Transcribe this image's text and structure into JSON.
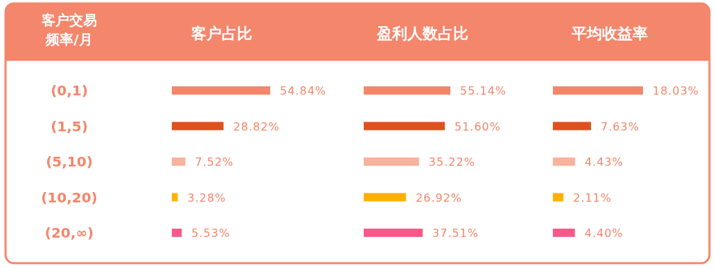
{
  "chart_data": [
    {
      "type": "bar",
      "orientation": "horizontal",
      "title": "客户占比",
      "ylabel": "客户交易频率/月",
      "categories": [
        "(0,1)",
        "(1,5)",
        "(5,10)",
        "(10,20)",
        "(20,∞)"
      ],
      "values": [
        54.84,
        28.82,
        7.52,
        3.28,
        5.53
      ],
      "colors": [
        "#f4866c",
        "#e0501e",
        "#f9b29c",
        "#ffb000",
        "#f75a8a"
      ],
      "value_labels": [
        "54.84%",
        "28.82%",
        "7.52%",
        "3.28%",
        "5.53%"
      ]
    },
    {
      "type": "bar",
      "orientation": "horizontal",
      "title": "盈利人数占比",
      "values": [
        55.14,
        51.6,
        35.22,
        26.92,
        37.51
      ],
      "colors": [
        "#f4866c",
        "#e0501e",
        "#f9b29c",
        "#ffb000",
        "#f75a8a"
      ],
      "value_labels": [
        "55.14%",
        "51.60%",
        "35.22%",
        "26.92%",
        "37.51%"
      ]
    },
    {
      "type": "bar",
      "orientation": "horizontal",
      "title": "平均收益率",
      "values": [
        18.03,
        7.63,
        4.43,
        2.11,
        4.4
      ],
      "colors": [
        "#f4866c",
        "#e0501e",
        "#f9b29c",
        "#ffb000",
        "#f75a8a"
      ],
      "value_labels": [
        "18.03%",
        "7.63%",
        "4.43%",
        "2.11%",
        "4.40%"
      ]
    }
  ]
}
